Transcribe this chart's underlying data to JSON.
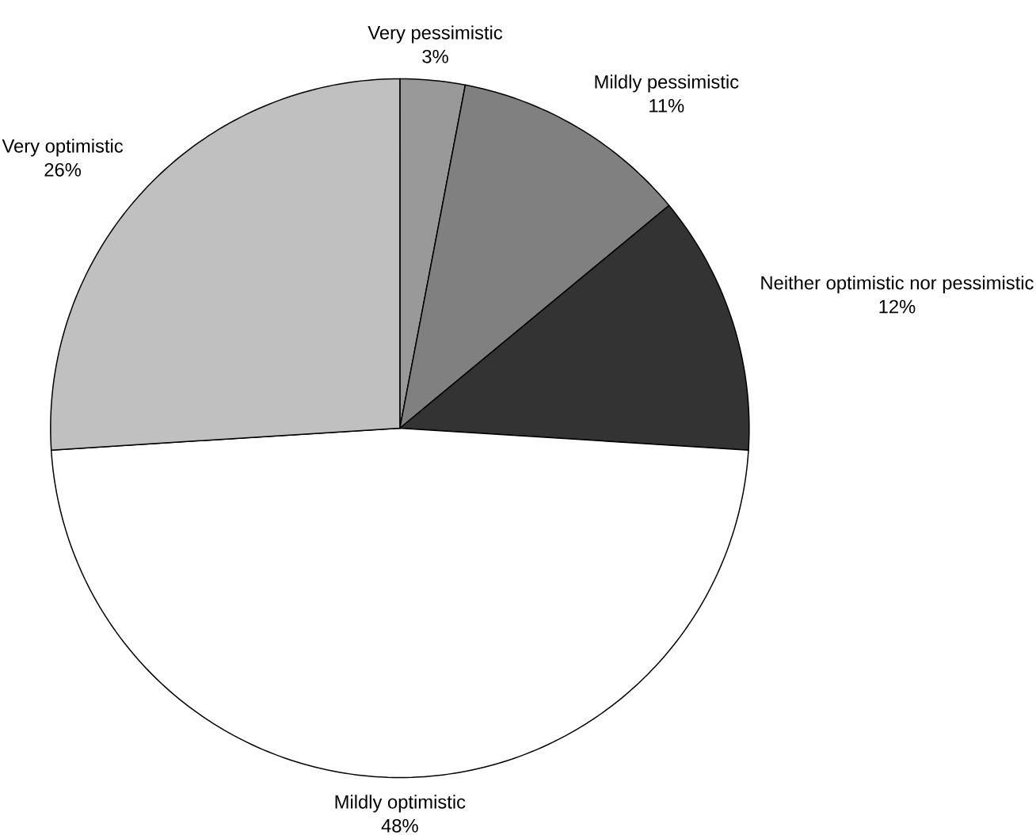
{
  "chart_data": {
    "type": "pie",
    "categories": [
      "Very pessimistic",
      "Mildly pessimistic",
      "Neither optimistic nor pessimistic",
      "Mildly optimistic",
      "Very optimistic"
    ],
    "values": [
      3,
      11,
      12,
      48,
      26
    ],
    "value_labels": [
      "3%",
      "11%",
      "12%",
      "48%",
      "26%"
    ],
    "colors": [
      "#999999",
      "#808080",
      "#333333",
      "#ffffff",
      "#c0c0c0"
    ]
  }
}
